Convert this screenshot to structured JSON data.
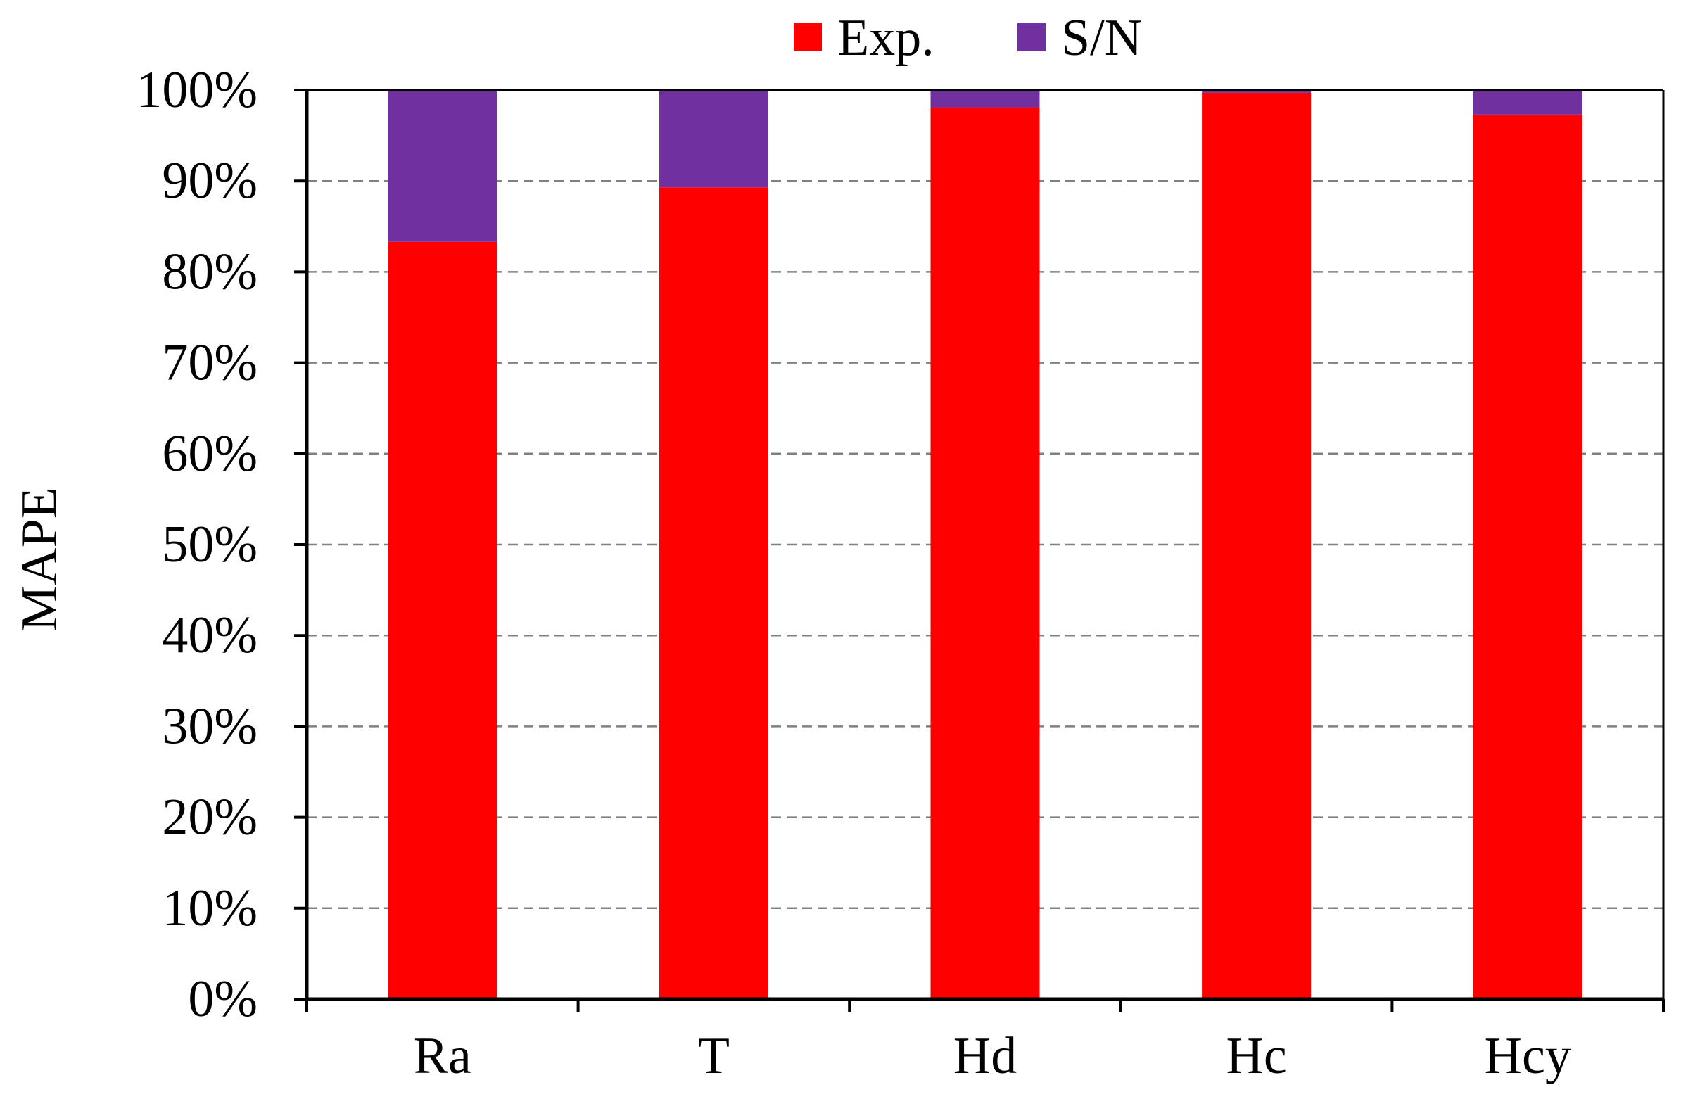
{
  "chart_data": {
    "type": "bar",
    "stacked": true,
    "percent_stacked": true,
    "title": "",
    "xlabel": "",
    "ylabel": "MAPE",
    "categories": [
      "Ra",
      "T",
      "Hd",
      "Hc",
      "Hcy"
    ],
    "series": [
      {
        "name": "Exp.",
        "color": "#ff0000",
        "values": [
          83.3,
          89.3,
          98.1,
          99.7,
          97.3
        ]
      },
      {
        "name": "S/N",
        "color": "#7030a0",
        "values": [
          16.7,
          10.7,
          1.9,
          0.3,
          2.7
        ]
      }
    ],
    "ylim": [
      0,
      100
    ],
    "yticks": [
      "0%",
      "10%",
      "20%",
      "30%",
      "40%",
      "50%",
      "60%",
      "70%",
      "80%",
      "90%",
      "100%"
    ],
    "grid": "horizontal-dashed",
    "legend": "top-center"
  }
}
